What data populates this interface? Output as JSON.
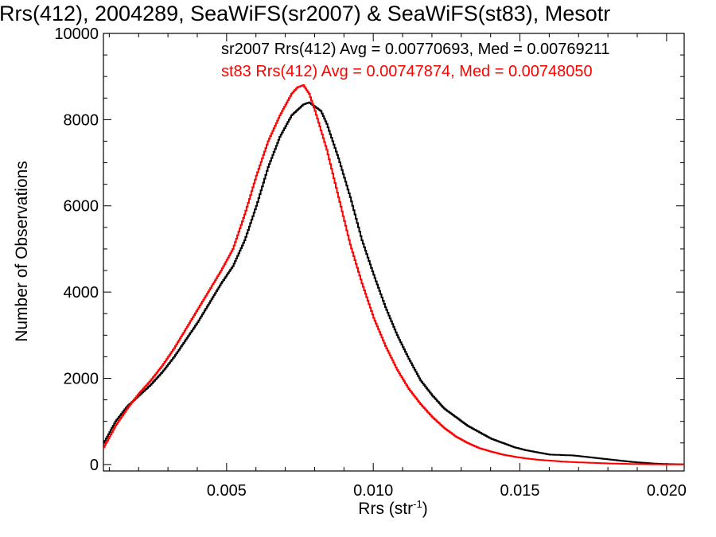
{
  "chart_data": {
    "type": "line",
    "title": "Rrs(412), 2004289, SeaWiFS(sr2007) & SeaWiFS(st83), Mesotr",
    "xlabel": "Rrs (str",
    "xlabel_sup": "-1",
    "xlabel_close": ")",
    "ylabel": "Number of Observations",
    "xlim": [
      0.0008,
      0.0206
    ],
    "ylim": [
      -150,
      10000
    ],
    "xticks": [
      0.005,
      0.01,
      0.015,
      0.02
    ],
    "xtick_labels": [
      "0.005",
      "0.010",
      "0.015",
      "0.020"
    ],
    "yticks": [
      0,
      2000,
      4000,
      6000,
      8000,
      10000
    ],
    "ytick_labels": [
      "0",
      "2000",
      "4000",
      "6000",
      "8000",
      "10000"
    ],
    "grid": false,
    "legend_position": "top-right",
    "series": [
      {
        "name": "sr2007 Rrs(412) Avg = 0.00770693, Med = 0.00769211",
        "color": "#000000",
        "x": [
          0.0008,
          0.0012,
          0.0016,
          0.002,
          0.0024,
          0.0028,
          0.0032,
          0.0036,
          0.004,
          0.0044,
          0.0048,
          0.0052,
          0.0056,
          0.006,
          0.0064,
          0.0068,
          0.0072,
          0.0076,
          0.0078,
          0.008,
          0.0082,
          0.0084,
          0.0088,
          0.0092,
          0.0096,
          0.01,
          0.0104,
          0.0108,
          0.0112,
          0.0116,
          0.012,
          0.0124,
          0.0128,
          0.0132,
          0.0136,
          0.014,
          0.0144,
          0.0148,
          0.0152,
          0.0156,
          0.016,
          0.0164,
          0.0168,
          0.0172,
          0.0176,
          0.018,
          0.0184,
          0.0188,
          0.0192,
          0.0196,
          0.02,
          0.0204
        ],
        "y": [
          500,
          1000,
          1350,
          1600,
          1850,
          2150,
          2500,
          2900,
          3300,
          3750,
          4200,
          4600,
          5200,
          6000,
          6900,
          7600,
          8100,
          8350,
          8400,
          8300,
          8200,
          7900,
          7100,
          6200,
          5200,
          4400,
          3650,
          3000,
          2450,
          1950,
          1600,
          1300,
          1100,
          900,
          750,
          600,
          500,
          400,
          330,
          280,
          230,
          220,
          210,
          180,
          150,
          120,
          90,
          60,
          40,
          20,
          10,
          5
        ]
      },
      {
        "name": "st83 Rrs(412) Avg = 0.00747874, Med = 0.00748050",
        "color": "#ff0000",
        "x": [
          0.0008,
          0.0012,
          0.0016,
          0.002,
          0.0024,
          0.0028,
          0.0032,
          0.0036,
          0.004,
          0.0044,
          0.0048,
          0.0052,
          0.0056,
          0.006,
          0.0064,
          0.0068,
          0.0072,
          0.0074,
          0.0076,
          0.0078,
          0.008,
          0.0084,
          0.0088,
          0.0092,
          0.0096,
          0.01,
          0.0104,
          0.0108,
          0.0112,
          0.0116,
          0.012,
          0.0124,
          0.0128,
          0.0132,
          0.0136,
          0.014,
          0.0144,
          0.0148,
          0.0152,
          0.0156,
          0.016,
          0.0164,
          0.0168,
          0.0172,
          0.0176,
          0.018,
          0.0184,
          0.0188,
          0.0192,
          0.0196,
          0.02,
          0.0204
        ],
        "y": [
          400,
          900,
          1300,
          1650,
          1950,
          2300,
          2700,
          3150,
          3600,
          4050,
          4500,
          5000,
          5800,
          6700,
          7500,
          8100,
          8600,
          8750,
          8800,
          8600,
          8200,
          7300,
          6200,
          5100,
          4200,
          3400,
          2750,
          2200,
          1750,
          1400,
          1100,
          850,
          650,
          500,
          380,
          300,
          230,
          180,
          140,
          110,
          90,
          70,
          55,
          45,
          35,
          25,
          18,
          12,
          8,
          5,
          3,
          2
        ]
      }
    ]
  }
}
